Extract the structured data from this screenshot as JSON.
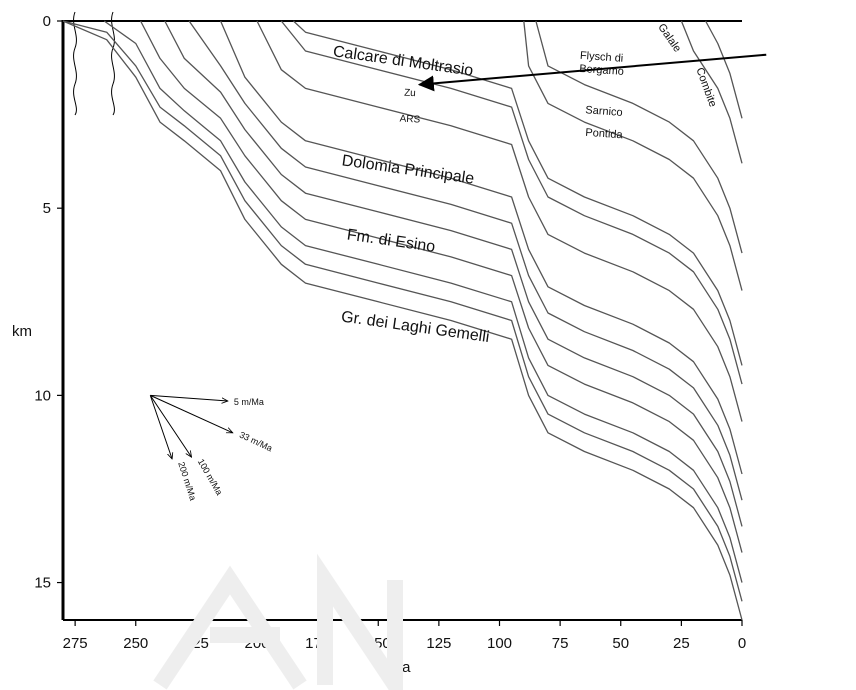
{
  "chart_data": {
    "type": "line",
    "title": "",
    "xlabel": "Ma",
    "ylabel": "km",
    "xlim": [
      280,
      0
    ],
    "ylim": [
      0,
      16
    ],
    "x_ticks": [
      275,
      250,
      225,
      200,
      175,
      150,
      125,
      100,
      75,
      50,
      25,
      0
    ],
    "y_ticks": [
      0,
      5,
      10,
      15
    ],
    "grid": false,
    "legend": "none",
    "line_color": "#555555",
    "series": [
      {
        "x": [
          280,
          262,
          250,
          240,
          230,
          215,
          205,
          190,
          180,
          150,
          120,
          95,
          88,
          80,
          65,
          45,
          30,
          20,
          10,
          5,
          0
        ],
        "y": [
          0,
          0.5,
          1.5,
          2.7,
          3.2,
          4.0,
          5.3,
          6.5,
          7.0,
          7.5,
          8.0,
          8.5,
          10.0,
          11.0,
          11.5,
          12.0,
          12.5,
          13.0,
          14.0,
          14.8,
          16.0
        ]
      },
      {
        "x": [
          280,
          262,
          250,
          240,
          230,
          215,
          205,
          190,
          180,
          150,
          120,
          95,
          88,
          80,
          65,
          45,
          30,
          20,
          10,
          5,
          0
        ],
        "y": [
          0,
          0.3,
          1.2,
          2.3,
          2.8,
          3.6,
          4.8,
          6.0,
          6.5,
          7.0,
          7.5,
          8.0,
          9.5,
          10.5,
          11.0,
          11.5,
          12.0,
          12.5,
          13.5,
          14.3,
          15.5
        ]
      },
      {
        "x": [
          263,
          250,
          240,
          230,
          215,
          205,
          190,
          180,
          150,
          120,
          95,
          88,
          80,
          65,
          45,
          30,
          20,
          10,
          5,
          0
        ],
        "y": [
          0,
          0.6,
          1.8,
          2.4,
          3.2,
          4.3,
          5.5,
          6.0,
          6.5,
          7.0,
          7.5,
          9.0,
          10.0,
          10.5,
          11.0,
          11.5,
          12.0,
          13.0,
          13.8,
          15.0
        ]
      },
      {
        "x": [
          248,
          240,
          230,
          215,
          205,
          190,
          180,
          150,
          120,
          95,
          88,
          80,
          65,
          45,
          30,
          20,
          10,
          5,
          0
        ],
        "y": [
          0,
          1.0,
          1.8,
          2.6,
          3.6,
          4.8,
          5.3,
          5.8,
          6.3,
          6.8,
          8.2,
          9.2,
          9.7,
          10.2,
          10.7,
          11.2,
          12.2,
          13.0,
          14.2
        ]
      },
      {
        "x": [
          238,
          230,
          215,
          205,
          190,
          180,
          150,
          120,
          95,
          88,
          80,
          65,
          45,
          30,
          20,
          10,
          5,
          0
        ],
        "y": [
          0,
          1.0,
          1.9,
          2.9,
          4.1,
          4.6,
          5.1,
          5.6,
          6.1,
          7.5,
          8.5,
          9.0,
          9.5,
          10.0,
          10.5,
          11.5,
          12.3,
          13.5
        ]
      },
      {
        "x": [
          228,
          215,
          205,
          190,
          180,
          150,
          120,
          95,
          88,
          80,
          65,
          45,
          30,
          20,
          10,
          5,
          0
        ],
        "y": [
          0,
          1.2,
          2.2,
          3.4,
          3.9,
          4.4,
          4.9,
          5.4,
          6.8,
          7.8,
          8.3,
          8.8,
          9.3,
          9.8,
          10.8,
          11.6,
          12.8
        ]
      },
      {
        "x": [
          215,
          205,
          190,
          180,
          150,
          120,
          95,
          88,
          80,
          65,
          45,
          30,
          20,
          10,
          5,
          0
        ],
        "y": [
          0,
          1.5,
          2.7,
          3.2,
          3.7,
          4.2,
          4.7,
          6.1,
          7.1,
          7.6,
          8.1,
          8.6,
          9.1,
          10.1,
          10.9,
          12.1
        ]
      },
      {
        "x": [
          200,
          190,
          180,
          150,
          120,
          95,
          88,
          80,
          65,
          45,
          30,
          20,
          10,
          5,
          0
        ],
        "y": [
          0,
          1.3,
          1.8,
          2.3,
          2.8,
          3.3,
          4.7,
          5.7,
          6.2,
          6.7,
          7.2,
          7.7,
          8.7,
          9.5,
          10.7
        ]
      },
      {
        "x": [
          190,
          180,
          150,
          120,
          95,
          88,
          80,
          65,
          45,
          30,
          20,
          10,
          5,
          0
        ],
        "y": [
          0,
          0.8,
          1.3,
          1.8,
          2.3,
          3.7,
          4.7,
          5.2,
          5.7,
          6.2,
          6.7,
          7.7,
          8.5,
          9.7
        ]
      },
      {
        "x": [
          185,
          180,
          150,
          120,
          95,
          88,
          80,
          65,
          45,
          30,
          20,
          10,
          5,
          0
        ],
        "y": [
          0,
          0.3,
          0.8,
          1.3,
          1.8,
          3.2,
          4.2,
          4.7,
          5.2,
          5.7,
          6.2,
          7.2,
          8.0,
          9.2
        ]
      },
      {
        "x": [
          90,
          88,
          80,
          65,
          45,
          30,
          20,
          10,
          5,
          0
        ],
        "y": [
          0,
          1.2,
          2.2,
          2.7,
          3.2,
          3.7,
          4.2,
          5.2,
          6.0,
          7.2
        ]
      },
      {
        "x": [
          85,
          80,
          65,
          45,
          30,
          20,
          10,
          5,
          0
        ],
        "y": [
          0,
          1.2,
          1.7,
          2.2,
          2.7,
          3.2,
          4.2,
          5.0,
          6.2
        ]
      },
      {
        "x": [
          25,
          20,
          10,
          5,
          0
        ],
        "y": [
          0,
          0.8,
          1.8,
          2.6,
          3.8
        ]
      },
      {
        "x": [
          15,
          10,
          5,
          0
        ],
        "y": [
          0,
          0.6,
          1.4,
          2.6
        ]
      }
    ],
    "annotations": [
      {
        "text": "Calcare di Moltrasio",
        "x": 140,
        "y": 1.2,
        "angle": 8
      },
      {
        "text": "Zu",
        "x": 137,
        "y": 2.0,
        "angle": 3
      },
      {
        "text": "ARS",
        "x": 137,
        "y": 2.7,
        "angle": 3
      },
      {
        "text": "Dolomia Principale",
        "x": 138,
        "y": 4.1,
        "angle": 8
      },
      {
        "text": "Fm. di Esino",
        "x": 145,
        "y": 6.0,
        "angle": 8
      },
      {
        "text": "Gr. dei Laghi Gemelli",
        "x": 135,
        "y": 8.3,
        "angle": 8
      },
      {
        "text": "Flysch di",
        "x": 58,
        "y": 1.05,
        "angle": 4
      },
      {
        "text": "Bergamo",
        "x": 58,
        "y": 1.4,
        "angle": 4
      },
      {
        "text": "Sarnico",
        "x": 57,
        "y": 2.5,
        "angle": 4
      },
      {
        "text": "Pontida",
        "x": 57,
        "y": 3.1,
        "angle": 4
      },
      {
        "text": "Galale",
        "x": 31,
        "y": 0.5,
        "angle": 55
      },
      {
        "text": "Combite",
        "x": 16,
        "y": 1.8,
        "angle": 70
      }
    ],
    "arrow": {
      "from_x": -10,
      "from_y": 0.9,
      "to_x": 133,
      "to_y": 1.7
    },
    "rate_origin": {
      "x": 244,
      "y": 10
    },
    "rates": [
      {
        "label": "5 m/Ma",
        "end_x": 212,
        "end_y": 10.15,
        "text_angle": 0
      },
      {
        "label": "33 m/Ma",
        "end_x": 210,
        "end_y": 11.0,
        "text_angle": 25
      },
      {
        "label": "100 m/Ma",
        "end_x": 227,
        "end_y": 11.65,
        "text_angle": 60
      },
      {
        "label": "200 m/Ma",
        "end_x": 235,
        "end_y": 11.7,
        "text_angle": 72
      }
    ]
  }
}
